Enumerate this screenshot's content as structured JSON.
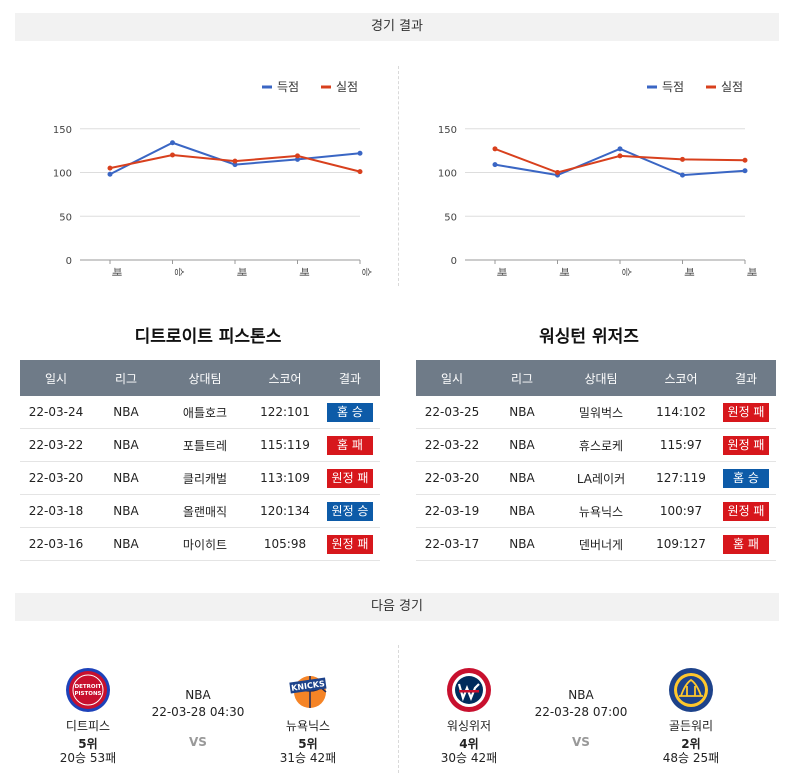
{
  "sections": {
    "results_title": "경기 결과",
    "next_title": "다음 경기"
  },
  "legend": {
    "scored": "득점",
    "conceded": "실점",
    "scored_color": "#3a66c4",
    "conceded_color": "#d8401d"
  },
  "chart_data": [
    {
      "type": "line",
      "categories": [
        "패",
        "승",
        "패",
        "패",
        "승"
      ],
      "series": [
        {
          "name": "득점",
          "values": [
            98,
            134,
            109,
            115,
            122
          ]
        },
        {
          "name": "실점",
          "values": [
            105,
            120,
            113,
            119,
            101
          ]
        }
      ],
      "yticks": [
        0,
        50,
        100,
        150
      ],
      "ylim": [
        0,
        160
      ],
      "legend": "top-right",
      "grid": true
    },
    {
      "type": "line",
      "categories": [
        "패",
        "패",
        "승",
        "패",
        "패"
      ],
      "series": [
        {
          "name": "득점",
          "values": [
            109,
            97,
            127,
            97,
            102
          ]
        },
        {
          "name": "실점",
          "values": [
            127,
            100,
            119,
            115,
            114
          ]
        }
      ],
      "yticks": [
        0,
        50,
        100,
        150
      ],
      "ylim": [
        0,
        160
      ],
      "legend": "top-right",
      "grid": true
    }
  ],
  "table_headers": [
    "일시",
    "리그",
    "상대팀",
    "스코어",
    "결과"
  ],
  "teams": [
    {
      "title": "디트로이트 피스톤스",
      "games": [
        {
          "date": "22-03-24",
          "league": "NBA",
          "opponent": "애틀호크",
          "score": "122:101",
          "result": "홈 승",
          "outcome": "win"
        },
        {
          "date": "22-03-22",
          "league": "NBA",
          "opponent": "포틀트레",
          "score": "115:119",
          "result": "홈 패",
          "outcome": "loss"
        },
        {
          "date": "22-03-20",
          "league": "NBA",
          "opponent": "클리캐벌",
          "score": "113:109",
          "result": "원정 패",
          "outcome": "loss"
        },
        {
          "date": "22-03-18",
          "league": "NBA",
          "opponent": "올랜매직",
          "score": "120:134",
          "result": "원정 승",
          "outcome": "win"
        },
        {
          "date": "22-03-16",
          "league": "NBA",
          "opponent": "마이히트",
          "score": "105:98",
          "result": "원정 패",
          "outcome": "loss"
        }
      ]
    },
    {
      "title": "워싱턴 위저즈",
      "games": [
        {
          "date": "22-03-25",
          "league": "NBA",
          "opponent": "밀워벅스",
          "score": "114:102",
          "result": "원정 패",
          "outcome": "loss"
        },
        {
          "date": "22-03-22",
          "league": "NBA",
          "opponent": "휴스로케",
          "score": "115:97",
          "result": "원정 패",
          "outcome": "loss"
        },
        {
          "date": "22-03-20",
          "league": "NBA",
          "opponent": "LA레이커",
          "score": "127:119",
          "result": "홈 승",
          "outcome": "win"
        },
        {
          "date": "22-03-19",
          "league": "NBA",
          "opponent": "뉴욕닉스",
          "score": "100:97",
          "result": "원정 패",
          "outcome": "loss"
        },
        {
          "date": "22-03-17",
          "league": "NBA",
          "opponent": "덴버너게",
          "score": "109:127",
          "result": "홈 패",
          "outcome": "loss"
        }
      ]
    }
  ],
  "next_games": [
    {
      "league": "NBA",
      "datetime": "22-03-28 04:30",
      "vs": "VS",
      "home": {
        "name": "디트피스",
        "rank": "5위",
        "record": "20승 53패",
        "logo_icon": "detroit-pistons-logo",
        "logo_text": "DETROIT PISTONS"
      },
      "away": {
        "name": "뉴욕닉스",
        "rank": "5위",
        "record": "31승 42패",
        "logo_icon": "new-york-knicks-logo",
        "logo_text": "KNICKS"
      }
    },
    {
      "league": "NBA",
      "datetime": "22-03-28 07:00",
      "vs": "VS",
      "home": {
        "name": "워싱위저",
        "rank": "4위",
        "record": "30승 42패",
        "logo_icon": "washington-wizards-logo",
        "logo_text": "WASHINGTON WIZARDS"
      },
      "away": {
        "name": "골든워리",
        "rank": "2위",
        "record": "48승 25패",
        "logo_icon": "golden-state-warriors-logo",
        "logo_text": "GOLDEN STATE WARRIORS"
      }
    }
  ]
}
